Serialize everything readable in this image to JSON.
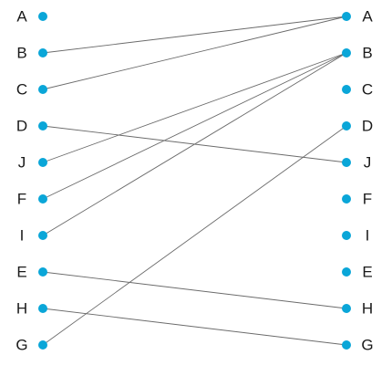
{
  "diagram": {
    "left_nodes": [
      "A",
      "B",
      "C",
      "D",
      "J",
      "F",
      "I",
      "E",
      "H",
      "G"
    ],
    "right_nodes": [
      "A",
      "B",
      "C",
      "D",
      "J",
      "F",
      "I",
      "E",
      "H",
      "G"
    ],
    "links": [
      {
        "from": "B",
        "to": "A"
      },
      {
        "from": "C",
        "to": "A"
      },
      {
        "from": "J",
        "to": "B"
      },
      {
        "from": "F",
        "to": "B"
      },
      {
        "from": "I",
        "to": "B"
      },
      {
        "from": "D",
        "to": "J"
      },
      {
        "from": "G",
        "to": "D"
      },
      {
        "from": "E",
        "to": "H"
      },
      {
        "from": "H",
        "to": "G"
      }
    ],
    "colors": {
      "node": "#0aa6d8",
      "line": "#6b6b6b",
      "label": "#1a1a1a"
    }
  }
}
